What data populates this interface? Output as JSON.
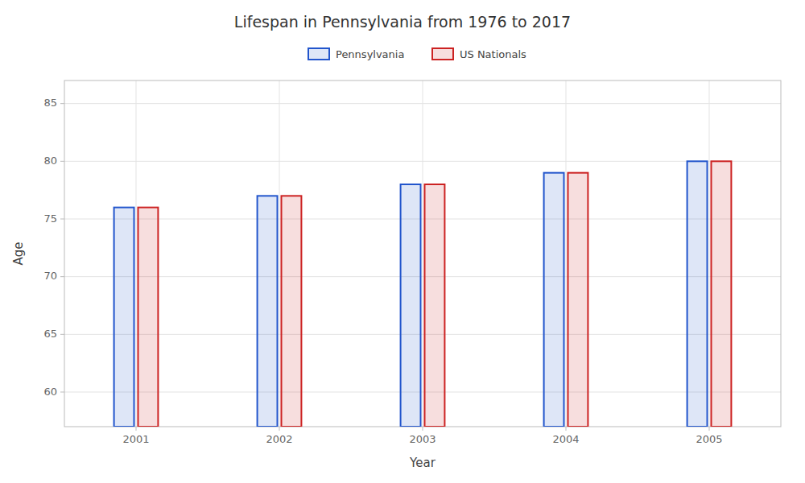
{
  "chart_data": {
    "type": "bar",
    "title": "Lifespan in Pennsylvania from 1976 to 2017",
    "x_label": "Year",
    "y_label": "Age",
    "categories": [
      "2001",
      "2002",
      "2003",
      "2004",
      "2005"
    ],
    "series": [
      {
        "name": "Pennsylvania",
        "color": "#2255cc",
        "values": [
          76,
          77,
          78,
          79,
          80
        ]
      },
      {
        "name": "US Nationals",
        "color": "#cc2222",
        "values": [
          76,
          77,
          78,
          79,
          80
        ]
      }
    ],
    "ylim": [
      57,
      87
    ],
    "yticks": [
      60,
      65,
      70,
      75,
      80,
      85
    ],
    "grid": true,
    "legend": "top"
  }
}
